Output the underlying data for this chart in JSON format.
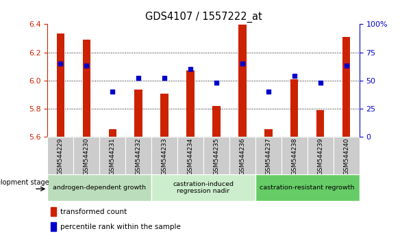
{
  "title": "GDS4107 / 1557222_at",
  "categories": [
    "GSM544229",
    "GSM544230",
    "GSM544231",
    "GSM544232",
    "GSM544233",
    "GSM544234",
    "GSM544235",
    "GSM544236",
    "GSM544237",
    "GSM544238",
    "GSM544239",
    "GSM544240"
  ],
  "bar_values": [
    6.335,
    6.29,
    5.655,
    5.935,
    5.905,
    6.07,
    5.82,
    6.395,
    5.655,
    6.01,
    5.79,
    6.31
  ],
  "percentile_values_pct": [
    65,
    63,
    40,
    52,
    52,
    60,
    48,
    65,
    40,
    54,
    48,
    63
  ],
  "ylim_left": [
    5.6,
    6.4
  ],
  "ylim_right": [
    0,
    100
  ],
  "yticks_left": [
    5.6,
    5.8,
    6.0,
    6.2,
    6.4
  ],
  "yticks_right": [
    0,
    25,
    50,
    75,
    100
  ],
  "ytick_labels_right": [
    "0",
    "25",
    "50",
    "75",
    "100%"
  ],
  "bar_color": "#cc2200",
  "percentile_color": "#0000cc",
  "bar_bottom": 5.6,
  "bar_width": 0.3,
  "groups": [
    {
      "label": "androgen-dependent growth",
      "indices": [
        0,
        1,
        2,
        3
      ],
      "color": "#bbddbb"
    },
    {
      "label": "castration-induced\nregression nadir",
      "indices": [
        4,
        5,
        6,
        7
      ],
      "color": "#cceecc"
    },
    {
      "label": "castration-resistant regrowth",
      "indices": [
        8,
        9,
        10,
        11
      ],
      "color": "#66cc66"
    }
  ],
  "xlabel_stage": "development stage",
  "legend_bar_label": "transformed count",
  "legend_pct_label": "percentile rank within the sample",
  "tick_color_left": "#cc2200",
  "tick_color_right": "#0000cc",
  "xticklabel_bg": "#cccccc",
  "grid_yticks": [
    5.8,
    6.0,
    6.2
  ]
}
